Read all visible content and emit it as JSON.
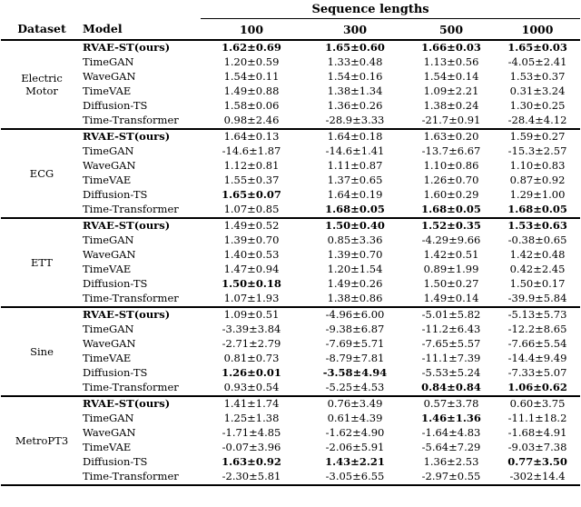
{
  "header": {
    "span_label": "Sequence lengths",
    "dataset_label": "Dataset",
    "model_label": "Model",
    "cols": [
      "100",
      "300",
      "500",
      "1000"
    ]
  },
  "sections": [
    {
      "dataset": "Electric Motor",
      "rows": [
        {
          "model": "RVAE-ST(ours)",
          "model_bold": true,
          "values": [
            "1.62±0.69",
            "1.65±0.60",
            "1.66±0.03",
            "1.65±0.03"
          ],
          "bold": [
            true,
            true,
            true,
            true
          ]
        },
        {
          "model": "TimeGAN",
          "model_bold": false,
          "values": [
            "1.20±0.59",
            "1.33±0.48",
            "1.13±0.56",
            "-4.05±2.41"
          ],
          "bold": [
            false,
            false,
            false,
            false
          ]
        },
        {
          "model": "WaveGAN",
          "model_bold": false,
          "values": [
            "1.54±0.11",
            "1.54±0.16",
            "1.54±0.14",
            "1.53±0.37"
          ],
          "bold": [
            false,
            false,
            false,
            false
          ]
        },
        {
          "model": "TimeVAE",
          "model_bold": false,
          "values": [
            "1.49±0.88",
            "1.38±1.34",
            "1.09±2.21",
            "0.31±3.24"
          ],
          "bold": [
            false,
            false,
            false,
            false
          ]
        },
        {
          "model": "Diffusion-TS",
          "model_bold": false,
          "values": [
            "1.58±0.06",
            "1.36±0.26",
            "1.38±0.24",
            "1.30±0.25"
          ],
          "bold": [
            false,
            false,
            false,
            false
          ]
        },
        {
          "model": "Time-Transformer",
          "model_bold": false,
          "values": [
            "0.98±2.46",
            "-28.9±3.33",
            "-21.7±0.91",
            "-28.4±4.12"
          ],
          "bold": [
            false,
            false,
            false,
            false
          ]
        }
      ]
    },
    {
      "dataset": "ECG",
      "rows": [
        {
          "model": "RVAE-ST(ours)",
          "model_bold": true,
          "values": [
            "1.64±0.13",
            "1.64±0.18",
            "1.63±0.20",
            "1.59±0.27"
          ],
          "bold": [
            false,
            false,
            false,
            false
          ]
        },
        {
          "model": "TimeGAN",
          "model_bold": false,
          "values": [
            "-14.6±1.87",
            "-14.6±1.41",
            "-13.7±6.67",
            "-15.3±2.57"
          ],
          "bold": [
            false,
            false,
            false,
            false
          ]
        },
        {
          "model": "WaveGAN",
          "model_bold": false,
          "values": [
            "1.12±0.81",
            "1.11±0.87",
            "1.10±0.86",
            "1.10±0.83"
          ],
          "bold": [
            false,
            false,
            false,
            false
          ]
        },
        {
          "model": "TimeVAE",
          "model_bold": false,
          "values": [
            "1.55±0.37",
            "1.37±0.65",
            "1.26±0.70",
            "0.87±0.92"
          ],
          "bold": [
            false,
            false,
            false,
            false
          ]
        },
        {
          "model": "Diffusion-TS",
          "model_bold": false,
          "values": [
            "1.65±0.07",
            "1.64±0.19",
            "1.60±0.29",
            "1.29±1.00"
          ],
          "bold": [
            true,
            false,
            false,
            false
          ]
        },
        {
          "model": "Time-Transformer",
          "model_bold": false,
          "values": [
            "1.07±0.85",
            "1.68±0.05",
            "1.68±0.05",
            "1.68±0.05"
          ],
          "bold": [
            false,
            true,
            true,
            true
          ]
        }
      ]
    },
    {
      "dataset": "ETT",
      "rows": [
        {
          "model": "RVAE-ST(ours)",
          "model_bold": true,
          "values": [
            "1.49±0.52",
            "1.50±0.40",
            "1.52±0.35",
            "1.53±0.63"
          ],
          "bold": [
            false,
            true,
            true,
            true
          ]
        },
        {
          "model": "TimeGAN",
          "model_bold": false,
          "values": [
            "1.39±0.70",
            "0.85±3.36",
            "-4.29±9.66",
            "-0.38±0.65"
          ],
          "bold": [
            false,
            false,
            false,
            false
          ]
        },
        {
          "model": "WaveGAN",
          "model_bold": false,
          "values": [
            "1.40±0.53",
            "1.39±0.70",
            "1.42±0.51",
            "1.42±0.48"
          ],
          "bold": [
            false,
            false,
            false,
            false
          ]
        },
        {
          "model": "TimeVAE",
          "model_bold": false,
          "values": [
            "1.47±0.94",
            "1.20±1.54",
            "0.89±1.99",
            "0.42±2.45"
          ],
          "bold": [
            false,
            false,
            false,
            false
          ]
        },
        {
          "model": "Diffusion-TS",
          "model_bold": false,
          "values": [
            "1.50±0.18",
            "1.49±0.26",
            "1.50±0.27",
            "1.50±0.17"
          ],
          "bold": [
            true,
            false,
            false,
            false
          ]
        },
        {
          "model": "Time-Transformer",
          "model_bold": false,
          "values": [
            "1.07±1.93",
            "1.38±0.86",
            "1.49±0.14",
            "-39.9±5.84"
          ],
          "bold": [
            false,
            false,
            false,
            false
          ]
        }
      ]
    },
    {
      "dataset": "Sine",
      "rows": [
        {
          "model": "RVAE-ST(ours)",
          "model_bold": true,
          "values": [
            "1.09±0.51",
            "-4.96±6.00",
            "-5.01±5.82",
            "-5.13±5.73"
          ],
          "bold": [
            false,
            false,
            false,
            false
          ]
        },
        {
          "model": "TimeGAN",
          "model_bold": false,
          "values": [
            "-3.39±3.84",
            "-9.38±6.87",
            "-11.2±6.43",
            "-12.2±8.65"
          ],
          "bold": [
            false,
            false,
            false,
            false
          ]
        },
        {
          "model": "WaveGAN",
          "model_bold": false,
          "values": [
            "-2.71±2.79",
            "-7.69±5.71",
            "-7.65±5.57",
            "-7.66±5.54"
          ],
          "bold": [
            false,
            false,
            false,
            false
          ]
        },
        {
          "model": "TimeVAE",
          "model_bold": false,
          "values": [
            "0.81±0.73",
            "-8.79±7.81",
            "-11.1±7.39",
            "-14.4±9.49"
          ],
          "bold": [
            false,
            false,
            false,
            false
          ]
        },
        {
          "model": "Diffusion-TS",
          "model_bold": false,
          "values": [
            "1.26±0.01",
            "-3.58±4.94",
            "-5.53±5.24",
            "-7.33±5.07"
          ],
          "bold": [
            true,
            true,
            false,
            false
          ]
        },
        {
          "model": "Time-Transformer",
          "model_bold": false,
          "values": [
            "0.93±0.54",
            "-5.25±4.53",
            "0.84±0.84",
            "1.06±0.62"
          ],
          "bold": [
            false,
            false,
            true,
            true
          ]
        }
      ]
    },
    {
      "dataset": "MetroPT3",
      "rows": [
        {
          "model": "RVAE-ST(ours)",
          "model_bold": true,
          "values": [
            "1.41±1.74",
            "0.76±3.49",
            "0.57±3.78",
            "0.60±3.75"
          ],
          "bold": [
            false,
            false,
            false,
            false
          ]
        },
        {
          "model": "TimeGAN",
          "model_bold": false,
          "values": [
            "1.25±1.38",
            "0.61±4.39",
            "1.46±1.36",
            "-11.1±18.2"
          ],
          "bold": [
            false,
            false,
            true,
            false
          ]
        },
        {
          "model": "WaveGAN",
          "model_bold": false,
          "values": [
            "-1.71±4.85",
            "-1.62±4.90",
            "-1.64±4.83",
            "-1.68±4.91"
          ],
          "bold": [
            false,
            false,
            false,
            false
          ]
        },
        {
          "model": "TimeVAE",
          "model_bold": false,
          "values": [
            "-0.07±3.96",
            "-2.06±5.91",
            "-5.64±7.29",
            "-9.03±7.38"
          ],
          "bold": [
            false,
            false,
            false,
            false
          ]
        },
        {
          "model": "Diffusion-TS",
          "model_bold": false,
          "values": [
            "1.63±0.92",
            "1.43±2.21",
            "1.36±2.53",
            "0.77±3.50"
          ],
          "bold": [
            true,
            true,
            false,
            true
          ]
        },
        {
          "model": "Time-Transformer",
          "model_bold": false,
          "values": [
            "-2.30±5.81",
            "-3.05±6.55",
            "-2.97±0.55",
            "-302±14.4"
          ],
          "bold": [
            false,
            false,
            false,
            false
          ]
        }
      ]
    }
  ]
}
